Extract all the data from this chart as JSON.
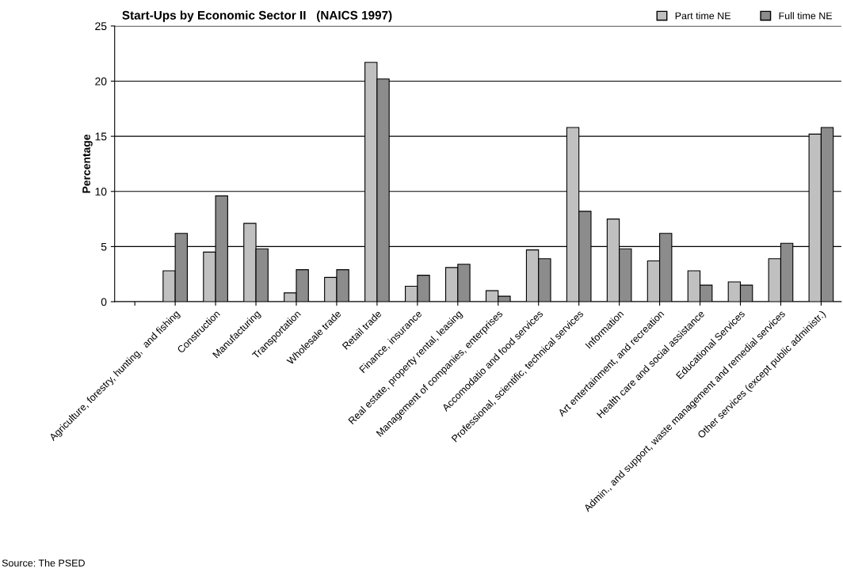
{
  "chart_data": {
    "type": "bar",
    "title": "Start-Ups by Economic Sector II   (NAICS 1997)",
    "ylabel": "Percentage",
    "categories": [
      null,
      "Agriculture, forestry, hunting,  and fishing",
      "Construction",
      "Manufacturing",
      "Transportation",
      "Wholesale trade",
      "Retail trade",
      "Finance, insurance",
      "Real estate, property rental, leasing",
      "Management of companies, enterprises",
      "Accomodatio and food services",
      "Professional, scientific, technical services",
      "Information",
      "Art entertainment, and recreation",
      "Health care and social assistance",
      "Educational Services",
      "Admin., and support, waste management and remedial services",
      "Other services (except public administr.)"
    ],
    "series": [
      {
        "name": "Part time NE",
        "color": "#c0c0c0",
        "values": [
          null,
          2.8,
          4.5,
          7.1,
          0.8,
          2.2,
          21.7,
          1.4,
          3.1,
          1.0,
          4.7,
          15.8,
          7.5,
          3.7,
          2.8,
          1.8,
          3.9,
          15.2
        ]
      },
      {
        "name": "Full time NE",
        "color": "#8c8c8c",
        "values": [
          null,
          6.2,
          9.6,
          4.8,
          2.9,
          2.9,
          20.2,
          2.4,
          3.4,
          0.5,
          3.9,
          8.2,
          4.8,
          6.2,
          1.5,
          1.5,
          5.3,
          15.8
        ]
      }
    ],
    "ylim": [
      0,
      25
    ],
    "yticks": [
      0,
      5,
      10,
      15,
      20,
      25
    ],
    "grid": "y",
    "legend": "top right",
    "annotations": [
      "Source: The PSED"
    ]
  }
}
